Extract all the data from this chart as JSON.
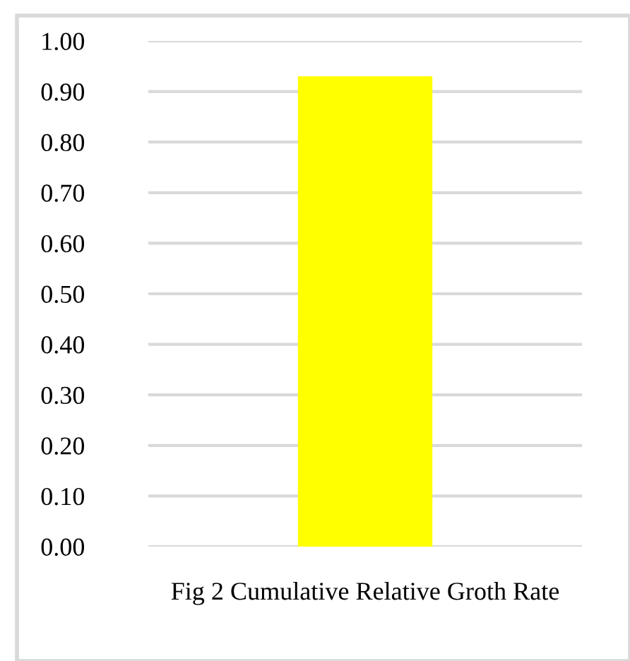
{
  "chart_data": {
    "type": "bar",
    "xlabel": "Fig 2 Cumulative Relative Groth Rate",
    "categories": [
      null
    ],
    "values": [
      0.93
    ],
    "color": "#ffff00",
    "ylim": [
      0,
      1.0
    ],
    "yticks": [
      {
        "value": 0,
        "label": "0.00"
      },
      {
        "value": 0.1,
        "label": "0.10"
      },
      {
        "value": 0.2,
        "label": "0.20"
      },
      {
        "value": 0.3,
        "label": "0.30"
      },
      {
        "value": 0.4,
        "label": "0.40"
      },
      {
        "value": 0.5,
        "label": "0.50"
      },
      {
        "value": 0.6,
        "label": "0.60"
      },
      {
        "value": 0.7,
        "label": "0.70"
      },
      {
        "value": 0.8,
        "label": "0.80"
      },
      {
        "value": 0.9,
        "label": "0.90"
      },
      {
        "value": 1.0,
        "label": "1.00"
      }
    ],
    "grid": "y",
    "tick_labels": "y"
  }
}
